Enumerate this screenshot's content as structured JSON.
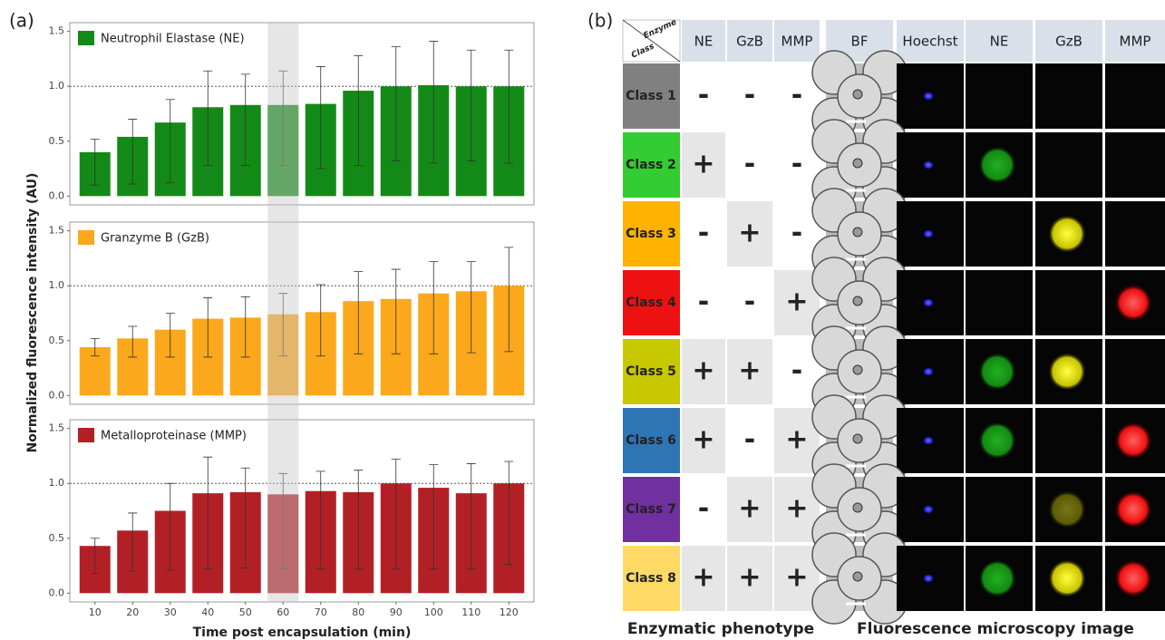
{
  "figure": {
    "label": "(a)",
    "y_label": "Normalized fluorescence intensity (AU)",
    "x_label": "Time post encapsulation (min)",
    "categories": [
      "10",
      "20",
      "30",
      "40",
      "50",
      "60",
      "70",
      "80",
      "90",
      "100",
      "110",
      "120"
    ],
    "highlight_category": "60"
  },
  "chart_data": [
    {
      "type": "bar",
      "legend": "upper left",
      "reference_line": 1,
      "ylim": [
        -0.08,
        1.58
      ],
      "yticks": [
        {
          "value": 0,
          "label": "0.0"
        },
        0.5,
        {
          "value": 1,
          "label": "1.0"
        },
        1.5
      ],
      "series": [
        {
          "name": "Neutrophil Elastase (NE)",
          "color": "#138a17",
          "values": [
            0.4,
            0.54,
            0.67,
            0.81,
            0.83,
            0.83,
            0.84,
            0.96,
            1.0,
            1.01,
            1.0,
            1.0
          ],
          "errors_minus": [
            0.3,
            0.43,
            0.55,
            0.53,
            0.55,
            0.55,
            0.59,
            0.68,
            0.68,
            0.71,
            0.68,
            0.7
          ],
          "errors_plus": [
            0.12,
            0.16,
            0.21,
            0.33,
            0.28,
            0.31,
            0.34,
            0.32,
            0.36,
            0.4,
            0.33,
            0.33
          ]
        }
      ]
    },
    {
      "type": "bar",
      "legend": "upper left",
      "reference_line": 1,
      "ylim": [
        -0.08,
        1.58
      ],
      "yticks": [
        {
          "value": 0,
          "label": "0.0"
        },
        0.5,
        {
          "value": 1,
          "label": "1.0"
        },
        1.5
      ],
      "series": [
        {
          "name": "Granzyme B (GzB)",
          "color": "#fba81c",
          "values": [
            0.44,
            0.52,
            0.6,
            0.7,
            0.71,
            0.74,
            0.76,
            0.86,
            0.88,
            0.93,
            0.95,
            1.0
          ],
          "errors_minus": [
            0.08,
            0.17,
            0.25,
            0.35,
            0.36,
            0.38,
            0.4,
            0.48,
            0.5,
            0.55,
            0.56,
            0.6
          ],
          "errors_plus": [
            0.08,
            0.11,
            0.15,
            0.19,
            0.19,
            0.19,
            0.25,
            0.27,
            0.27,
            0.29,
            0.27,
            0.35
          ]
        }
      ]
    },
    {
      "type": "bar",
      "legend": "upper left",
      "reference_line": 1,
      "ylim": [
        -0.08,
        1.58
      ],
      "yticks": [
        {
          "value": 0,
          "label": "0.0"
        },
        0.5,
        {
          "value": 1,
          "label": "1.0"
        },
        1.5
      ],
      "series": [
        {
          "name": "Metalloproteinase (MMP)",
          "color": "#b22025",
          "values": [
            0.43,
            0.57,
            0.75,
            0.91,
            0.92,
            0.9,
            0.93,
            0.92,
            1.0,
            0.96,
            0.91,
            1.0
          ],
          "errors_minus": [
            0.25,
            0.37,
            0.54,
            0.69,
            0.69,
            0.68,
            0.71,
            0.7,
            0.78,
            0.74,
            0.69,
            0.74
          ],
          "errors_plus": [
            0.07,
            0.16,
            0.25,
            0.33,
            0.22,
            0.19,
            0.18,
            0.2,
            0.22,
            0.21,
            0.27,
            0.2
          ]
        }
      ]
    }
  ],
  "table": {
    "label": "(b)",
    "corner": [
      "Enzyme",
      "Class"
    ],
    "columns": [
      "NE",
      "GzB",
      "MMP"
    ],
    "footer": "Enzymatic phenotype",
    "rows": [
      {
        "label": "Class 1",
        "color": "#808080",
        "cells": [
          "-",
          "-",
          "-"
        ]
      },
      {
        "label": "Class 2",
        "color": "#33cc33",
        "cells": [
          "+",
          "-",
          "-"
        ]
      },
      {
        "label": "Class 3",
        "color": "#ffb300",
        "cells": [
          "-",
          "+",
          "-"
        ]
      },
      {
        "label": "Class 4",
        "color": "#ee1111",
        "cells": [
          "-",
          "-",
          "+"
        ]
      },
      {
        "label": "Class 5",
        "color": "#c8c800",
        "cells": [
          "+",
          "+",
          "-"
        ]
      },
      {
        "label": "Class 6",
        "color": "#2e75b6",
        "cells": [
          "+",
          "-",
          "+"
        ]
      },
      {
        "label": "Class 7",
        "color": "#7030a0",
        "cells": [
          "-",
          "+",
          "+"
        ]
      },
      {
        "label": "Class 8",
        "color": "#ffd966",
        "cells": [
          "+",
          "+",
          "+"
        ]
      }
    ]
  },
  "images": {
    "columns": [
      "BF",
      "Hoechst",
      "NE",
      "GzB",
      "MMP"
    ],
    "footer": "Fluorescence microscopy image"
  }
}
